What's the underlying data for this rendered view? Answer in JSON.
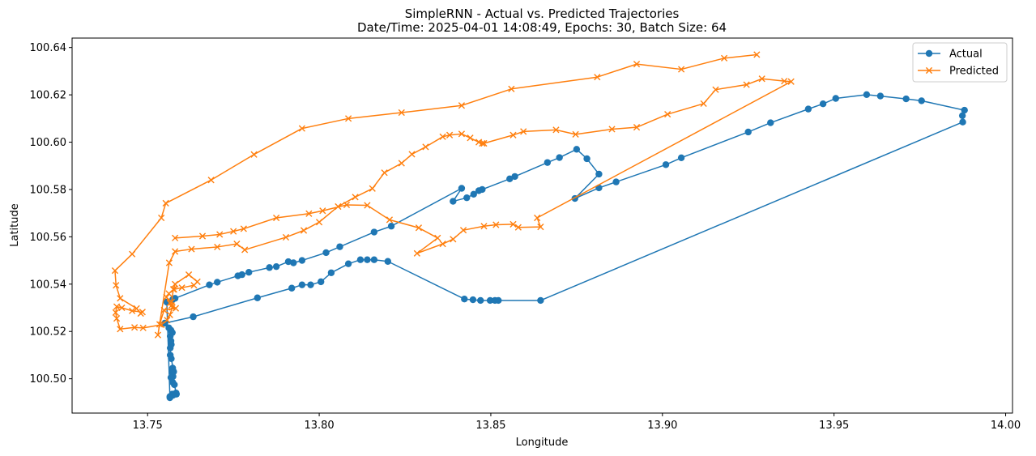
{
  "chart_data": {
    "type": "line",
    "title": "SimpleRNN - Actual vs. Predicted Trajectories",
    "subtitle": "Date/Time: 2025-04-01 14:08:49, Epochs: 30, Batch Size: 64",
    "xlabel": "Longitude",
    "ylabel": "Latitude",
    "xlim": [
      13.728,
      14.002
    ],
    "ylim": [
      100.4855,
      100.644
    ],
    "x_ticks": [
      "13.75",
      "13.80",
      "13.85",
      "13.90",
      "13.95",
      "14.00"
    ],
    "y_ticks": [
      "100.50",
      "100.52",
      "100.54",
      "100.56",
      "100.58",
      "100.60",
      "100.62",
      "100.64"
    ],
    "grid": false,
    "legend_position": "top-right",
    "series": [
      {
        "name": "Actual",
        "color": "#1f77b4",
        "marker": "circle",
        "x": [
          13.7572,
          13.7583,
          13.7584,
          13.7578,
          13.7573,
          13.7568,
          13.7574,
          13.7571,
          13.7573,
          13.7576,
          13.7569,
          13.7566,
          13.7566,
          13.7569,
          13.7568,
          13.7566,
          13.7572,
          13.7568,
          13.7562,
          13.755,
          13.7633,
          13.782,
          13.792,
          13.795,
          13.7975,
          13.8005,
          13.8035,
          13.8085,
          13.812,
          13.814,
          13.816,
          13.82,
          13.8423,
          13.8448,
          13.847,
          13.8498,
          13.8512,
          13.8522,
          13.8645,
          13.9875,
          13.9874,
          13.988,
          13.9755,
          13.971,
          13.9635,
          13.9595,
          13.9505,
          13.9468,
          13.9425,
          13.9315,
          13.925,
          13.9055,
          13.901,
          13.8865,
          13.8815,
          13.8745,
          13.8815,
          13.878,
          13.875,
          13.87,
          13.8665,
          13.857,
          13.8555,
          13.8475,
          13.8465,
          13.845,
          13.843,
          13.839,
          13.8415,
          13.821,
          13.816,
          13.806,
          13.802,
          13.795,
          13.7925,
          13.791,
          13.7875,
          13.7855,
          13.7795,
          13.7775,
          13.7763,
          13.7703,
          13.768,
          13.758,
          13.7573,
          13.7556,
          13.7565,
          13.7574,
          13.7565
        ],
        "y": [
          100.4935,
          100.494,
          100.4935,
          100.4975,
          100.4985,
          100.5005,
          100.501,
          100.503,
          100.5045,
          100.503,
          100.5085,
          100.51,
          100.513,
          100.5145,
          100.516,
          100.518,
          100.5195,
          100.5205,
          100.5215,
          100.5235,
          100.5262,
          100.5342,
          100.5383,
          100.5397,
          100.5397,
          100.541,
          100.5448,
          100.5486,
          100.5503,
          100.5503,
          100.5503,
          100.5496,
          100.5337,
          100.5334,
          100.5331,
          100.5331,
          100.5331,
          100.5331,
          100.5331,
          100.6085,
          100.6112,
          100.6135,
          100.6175,
          100.6183,
          100.6195,
          100.6201,
          100.6185,
          100.6162,
          100.614,
          100.6082,
          100.6043,
          100.5934,
          100.5905,
          100.5832,
          100.5807,
          100.5762,
          100.5865,
          100.593,
          100.597,
          100.5935,
          100.5914,
          100.5855,
          100.5845,
          100.58,
          100.5795,
          100.578,
          100.5765,
          100.575,
          100.5805,
          100.5645,
          100.562,
          100.5558,
          100.5533,
          100.55,
          100.549,
          100.5495,
          100.5474,
          100.547,
          100.545,
          100.544,
          100.5435,
          100.5408,
          100.5397,
          100.534,
          100.5335,
          100.5324,
          100.4925,
          100.493,
          100.492
        ]
      },
      {
        "name": "Predicted",
        "color": "#ff7f0e",
        "marker": "x",
        "x": [
          13.9275,
          13.918,
          13.9055,
          13.8925,
          13.881,
          13.856,
          13.8415,
          13.824,
          13.8085,
          13.795,
          13.781,
          13.7685,
          13.7553,
          13.754,
          13.7455,
          13.7405,
          13.7408,
          13.742,
          13.7468,
          13.748,
          13.7485,
          13.7455,
          13.7425,
          13.741,
          13.7407,
          13.741,
          13.742,
          13.7462,
          13.7487,
          13.754,
          13.7557,
          13.7565,
          13.7572,
          13.757,
          13.7575,
          13.758,
          13.762,
          13.7645,
          13.7635,
          13.76,
          13.7577,
          13.7562,
          13.7555,
          13.7565,
          13.757,
          13.7582,
          13.7548,
          13.7535,
          13.753,
          13.7563,
          13.758,
          13.7628,
          13.7703,
          13.776,
          13.7783,
          13.7903,
          13.7955,
          13.8,
          13.8055,
          13.8105,
          13.8155,
          13.819,
          13.824,
          13.827,
          13.831,
          13.836,
          13.838,
          13.8415,
          13.844,
          13.8465,
          13.8475,
          13.848,
          13.8565,
          13.8595,
          13.869,
          13.8747,
          13.8853,
          13.8925,
          13.9015,
          13.912,
          13.9155,
          13.9245,
          13.929,
          13.9355,
          13.9375,
          13.8635,
          13.8645,
          13.858,
          13.8565,
          13.8515,
          13.848,
          13.842,
          13.839,
          13.836,
          13.8285,
          13.8345,
          13.829,
          13.8205,
          13.814,
          13.808,
          13.801,
          13.797,
          13.7875,
          13.778,
          13.775,
          13.771,
          13.766,
          13.758
        ],
        "y": [
          100.637,
          100.6355,
          100.6308,
          100.633,
          100.6275,
          100.6225,
          100.6155,
          100.6125,
          100.61,
          100.6058,
          100.5948,
          100.584,
          100.5742,
          100.568,
          100.5527,
          100.5457,
          100.5395,
          100.534,
          100.5297,
          100.5276,
          100.5282,
          100.5287,
          100.53,
          100.5305,
          100.528,
          100.5255,
          100.521,
          100.5217,
          100.5215,
          100.5228,
          100.5248,
          100.527,
          100.5302,
          100.5325,
          100.5378,
          100.54,
          100.544,
          100.541,
          100.5395,
          100.5385,
          100.5378,
          100.536,
          100.5345,
          100.532,
          100.531,
          100.5298,
          100.529,
          100.523,
          100.5185,
          100.549,
          100.5538,
          100.5548,
          100.5557,
          100.557,
          100.5545,
          100.5598,
          100.5627,
          100.5662,
          100.5728,
          100.5768,
          100.5804,
          100.5871,
          100.5911,
          100.5949,
          100.598,
          100.6023,
          100.603,
          100.6035,
          100.6018,
          100.6,
          100.5995,
          100.5995,
          100.603,
          100.6045,
          100.6052,
          100.6033,
          100.6055,
          100.6063,
          100.6118,
          100.6163,
          100.6222,
          100.6243,
          100.6268,
          100.6258,
          100.6256,
          100.568,
          100.5642,
          100.564,
          100.5653,
          100.5651,
          100.5645,
          100.5628,
          100.559,
          100.557,
          100.553,
          100.5595,
          100.5638,
          100.5672,
          100.5733,
          100.5735,
          100.571,
          100.5698,
          100.568,
          100.5634,
          100.5623,
          100.561,
          100.5603,
          100.5595
        ]
      }
    ]
  }
}
